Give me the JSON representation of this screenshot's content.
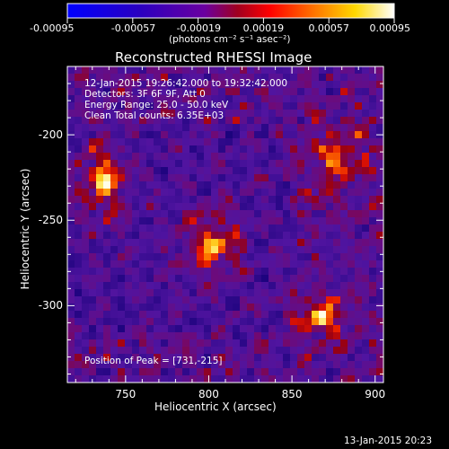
{
  "colorbar": {
    "tick_labels": [
      "-0.00095",
      "-0.00057",
      "-0.00019",
      "0.00019",
      "0.00057",
      "0.00095"
    ],
    "tick_values": [
      -0.00095,
      -0.00057,
      -0.00019,
      0.00019,
      0.00057,
      0.00095
    ],
    "range": [
      -0.00095,
      0.00095
    ],
    "units_label": "(photons cm⁻² s⁻¹ asec⁻²)",
    "colors": [
      "#0000ff",
      "#3a00b0",
      "#5a00a0",
      "#7a1090",
      "#c00000",
      "#ff3000",
      "#ff9000",
      "#ffff40",
      "#ffffff"
    ]
  },
  "plot": {
    "title": "Reconstructed RHESSI Image",
    "xlabel": "Heliocentric X (arcsec)",
    "ylabel": "Heliocentric Y (arcsec)",
    "x_tick_labels": [
      "750",
      "800",
      "850",
      "900"
    ],
    "x_tick_values": [
      750,
      800,
      850,
      900
    ],
    "y_tick_labels": [
      "-200",
      "-250",
      "-300"
    ],
    "y_tick_values": [
      -200,
      -250,
      -300
    ],
    "xlim": [
      715,
      905
    ],
    "ylim": [
      -345,
      -160
    ],
    "annotations": {
      "time_range": "12-Jan-2015 19:26:42.000 to 19:32:42.000",
      "detectors": "Detectors: 3F 6F 9F, Att 0",
      "energy": "Energy Range: 25.0 - 50.0 keV",
      "clean": "Clean    Total counts: 6.35E+03",
      "peak": "Position of Peak = [731,-215]"
    }
  },
  "footer": {
    "timestamp": "13-Jan-2015 20:23"
  }
}
